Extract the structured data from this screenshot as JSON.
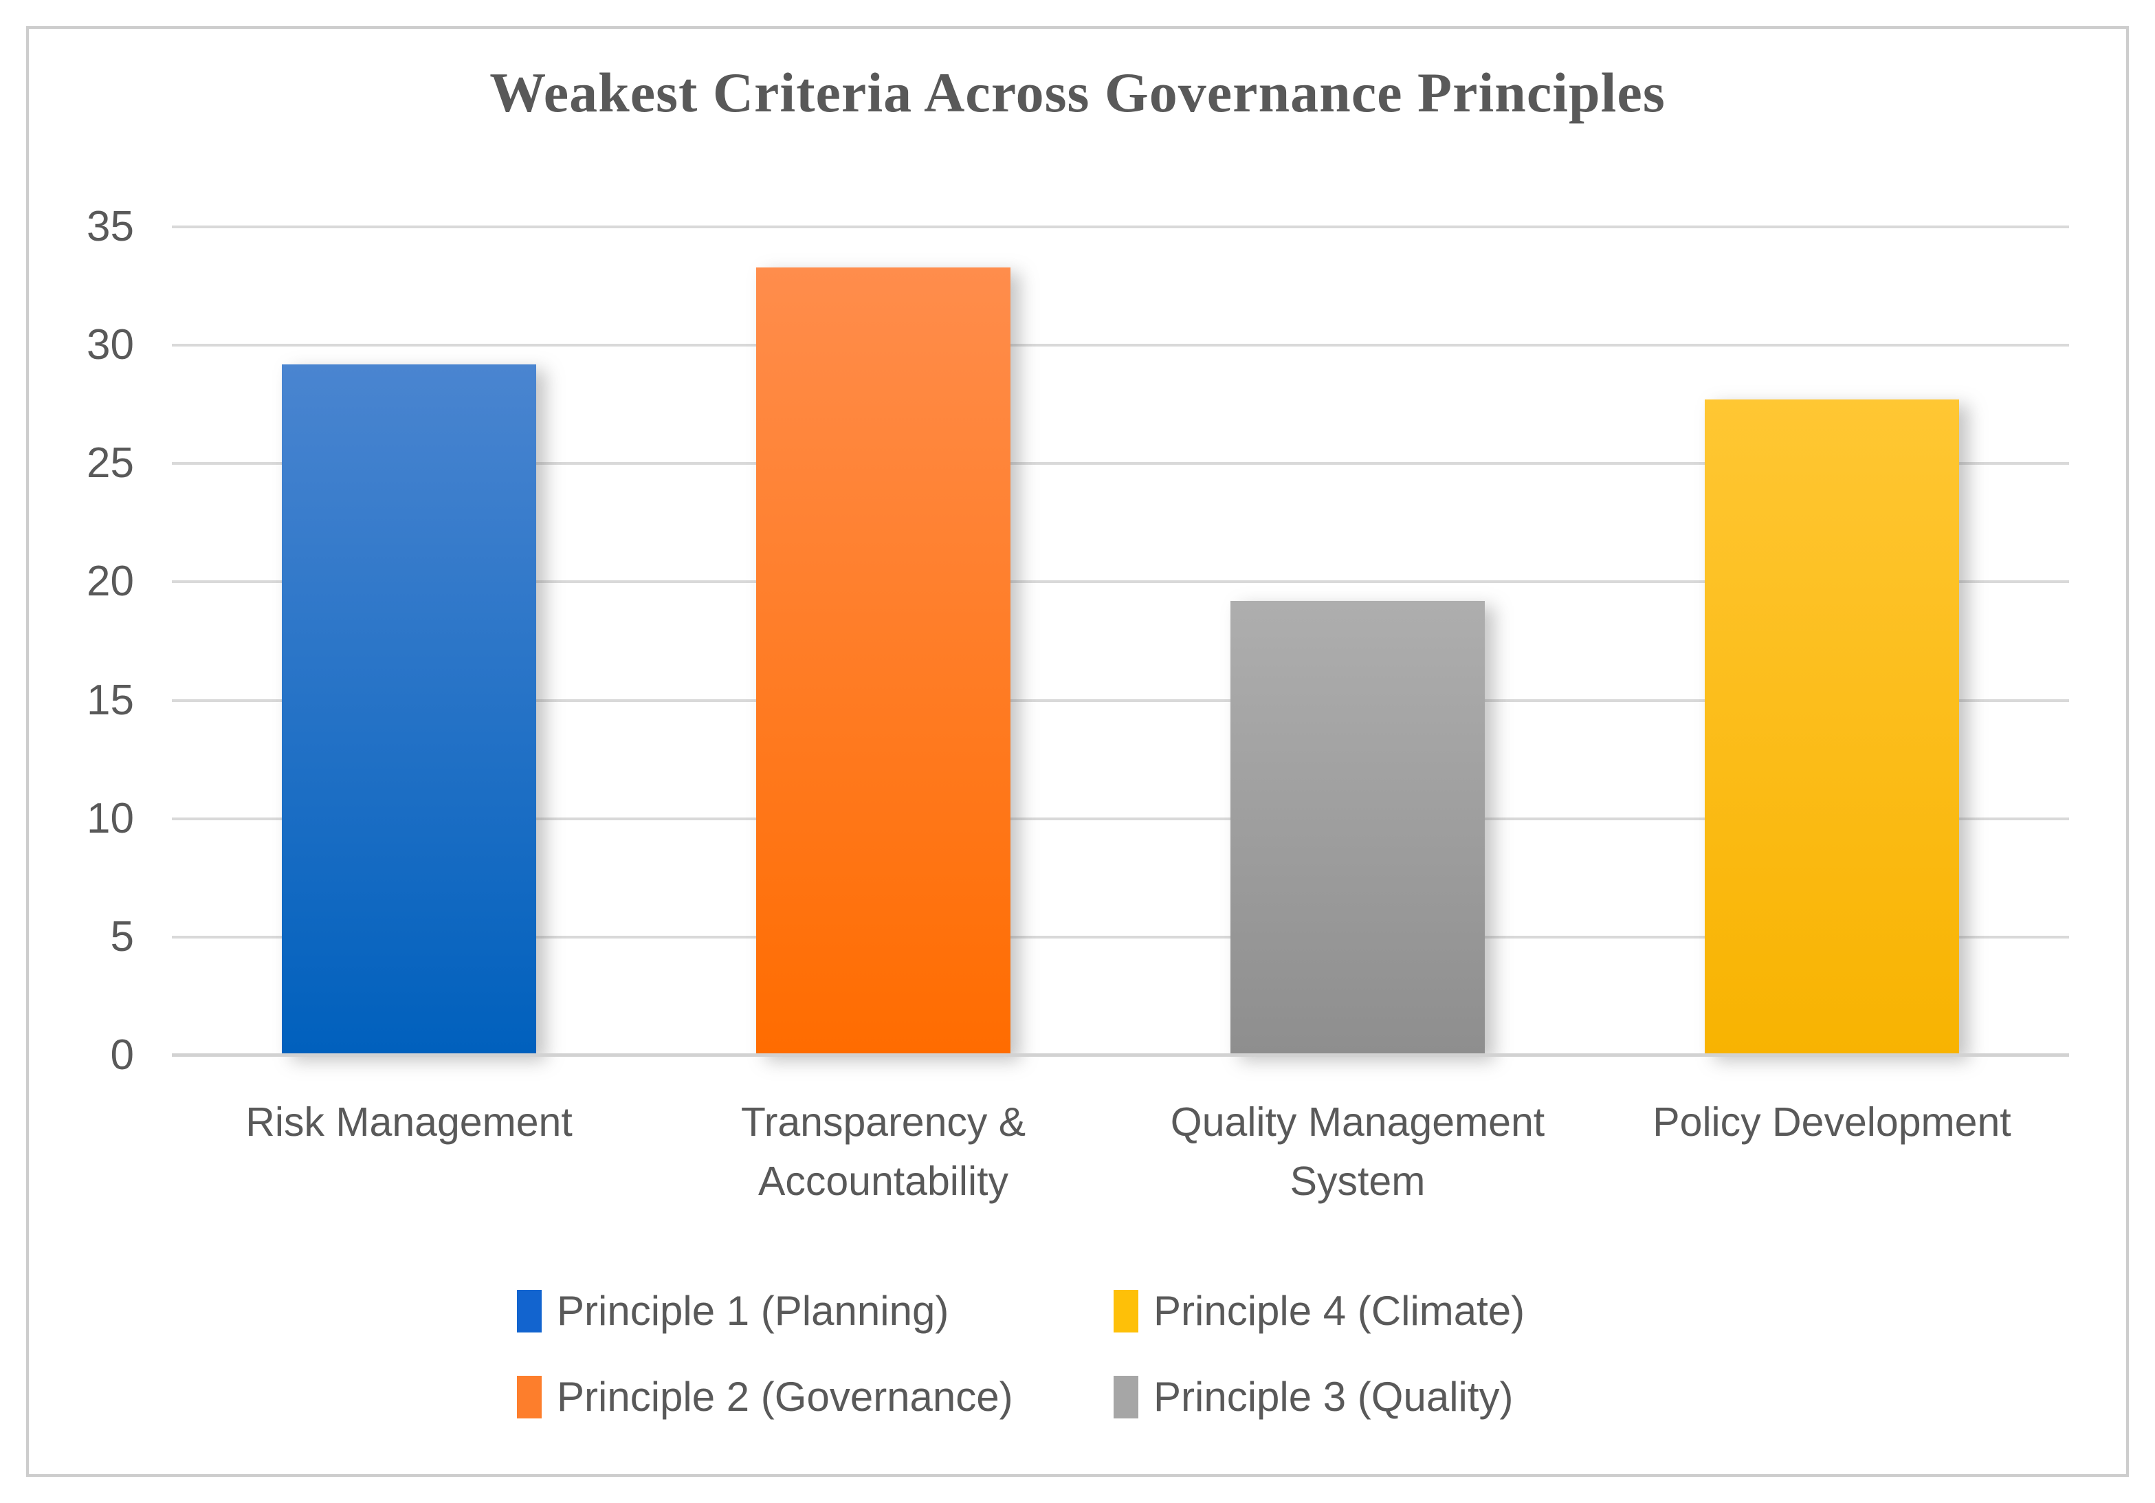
{
  "frame": {
    "border_color": "#cdcdcd"
  },
  "text_color": "#595959",
  "gridline_color": "#d9d9d9",
  "chart_data": {
    "type": "bar",
    "title": "Weakest Criteria Across Governance Principles",
    "xlabel": "",
    "ylabel": "",
    "ylim": [
      0,
      35
    ],
    "yticks": [
      0,
      5,
      10,
      15,
      20,
      25,
      30,
      35
    ],
    "grid": true,
    "legend_position": "bottom",
    "categories": [
      "Risk Management",
      "Transparency & Accountability",
      "Quality Management System",
      "Policy Development"
    ],
    "bars": [
      {
        "category": "Risk Management",
        "category_lines": [
          "Risk Management"
        ],
        "series": "Principle 1 (Planning)",
        "value": 29.2,
        "color_top": "#4a85d0",
        "color_bottom": "#0060bd"
      },
      {
        "category": "Transparency & Accountability",
        "category_lines": [
          "Transparency &",
          "Accountability"
        ],
        "series": "Principle 2 (Governance)",
        "value": 33.3,
        "color_top": "#ff8d4c",
        "color_bottom": "#ff6c00"
      },
      {
        "category": "Quality Management System",
        "category_lines": [
          "Quality Management",
          "System"
        ],
        "series": "Principle 3 (Quality)",
        "value": 19.2,
        "color_top": "#aeaeae",
        "color_bottom": "#8e8e8e"
      },
      {
        "category": "Policy Development",
        "category_lines": [
          "Policy Development"
        ],
        "series": "Principle 4 (Climate)",
        "value": 27.7,
        "color_top": "#ffc733",
        "color_bottom": "#f8b301"
      }
    ],
    "legend": [
      {
        "label": "Principle 1 (Planning)",
        "color": "#1264cf"
      },
      {
        "label": "Principle 4 (Climate)",
        "color": "#fec008"
      },
      {
        "label": "Principle 2 (Governance)",
        "color": "#fd7e2c"
      },
      {
        "label": "Principle 3 (Quality)",
        "color": "#a6a6a6"
      }
    ]
  }
}
